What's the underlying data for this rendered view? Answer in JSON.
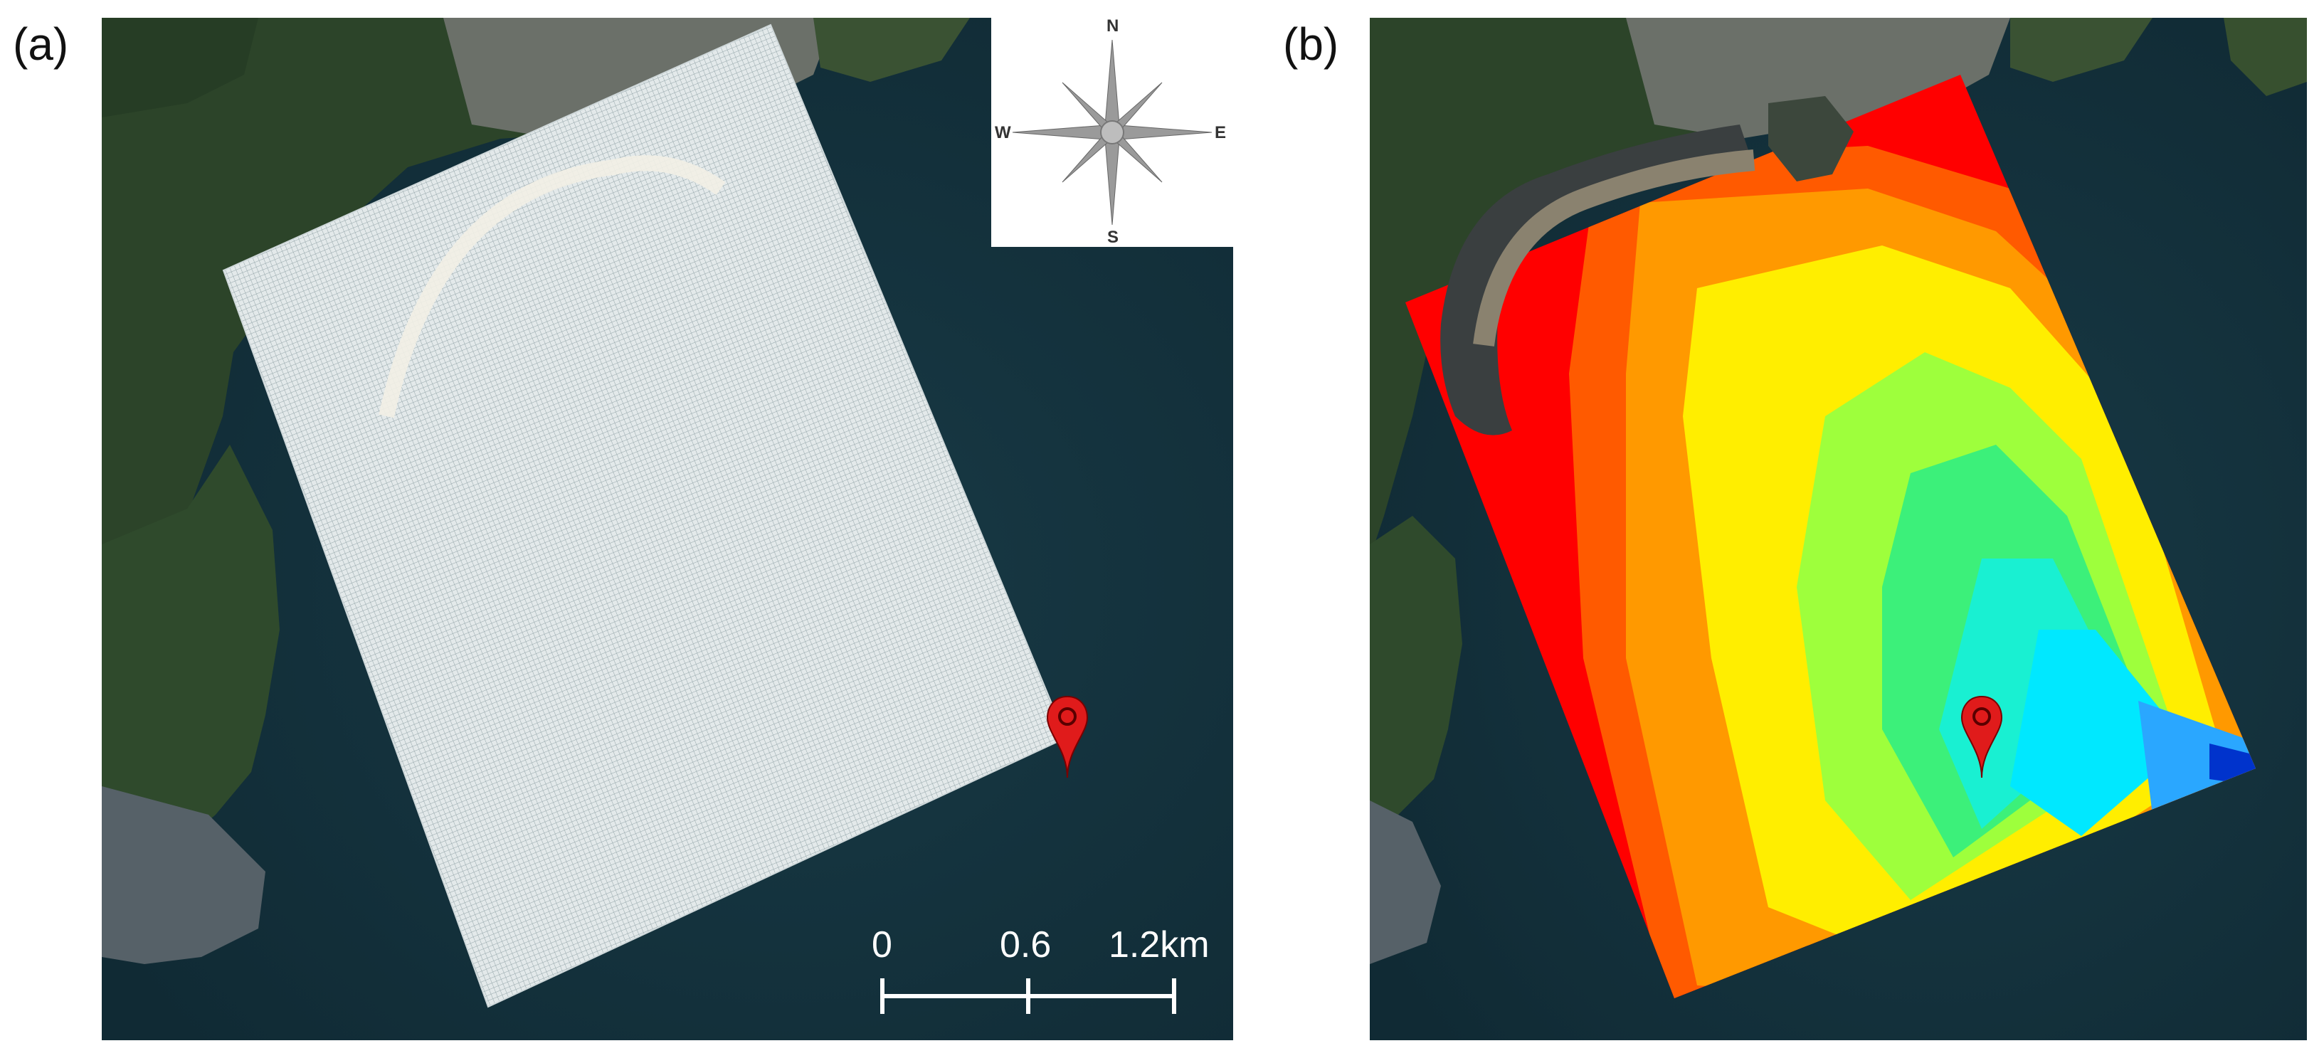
{
  "panels": [
    {
      "label": "(a)",
      "content": "computational-grid"
    },
    {
      "label": "(b)",
      "content": "depth-contour-map"
    }
  ],
  "compass": {
    "north": "N",
    "east": "E",
    "south": "S",
    "west": "W"
  },
  "scale_bar": {
    "labels": [
      "0",
      "0.6",
      "1.2km"
    ]
  },
  "colors": {
    "sea": "#14323e",
    "land": "#2c4429",
    "grid_fill": "#e3e9ea",
    "grid_line": "#8fa1a6",
    "pin": "#e01b1b",
    "depth_ramp": [
      "#ff0000",
      "#ff5a00",
      "#ff9900",
      "#ffee00",
      "#9eff3c",
      "#3cf07a",
      "#19f0d2",
      "#00e8ff",
      "#2aa7ff",
      "#0033cc"
    ]
  },
  "icons": [
    "compass-rose-icon",
    "location-pin-icon"
  ]
}
